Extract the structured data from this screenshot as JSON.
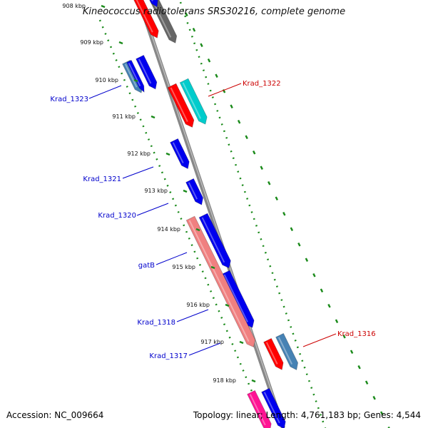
{
  "title": "Kineococcus radiotolerans SRS30216, complete genome",
  "footer": {
    "accession": "Accession: NC_009664",
    "summary": "Topology: linear; Length: 4,761,183 bp; Genes: 4,544"
  },
  "colors": {
    "backbone": "#888888",
    "tick": "#1a8a1a",
    "label_blue": "#0000cc",
    "label_red": "#cc0000"
  },
  "ticks": [
    "908 kbp",
    "909 kbp",
    "910 kbp",
    "911 kbp",
    "912 kbp",
    "913 kbp",
    "914 kbp",
    "915 kbp",
    "916 kbp",
    "917 kbp",
    "918 kbp"
  ],
  "gene_labels": [
    {
      "text": "Krad_1323",
      "color": "#0000cc"
    },
    {
      "text": "Krad_1322",
      "color": "#cc0000"
    },
    {
      "text": "Krad_1321",
      "color": "#0000cc"
    },
    {
      "text": "Krad_1320",
      "color": "#0000cc"
    },
    {
      "text": "gatB",
      "color": "#0000cc"
    },
    {
      "text": "Krad_1318",
      "color": "#0000cc"
    },
    {
      "text": "Krad_1317",
      "color": "#0000cc"
    },
    {
      "text": "Krad_1316",
      "color": "#cc0000"
    }
  ]
}
